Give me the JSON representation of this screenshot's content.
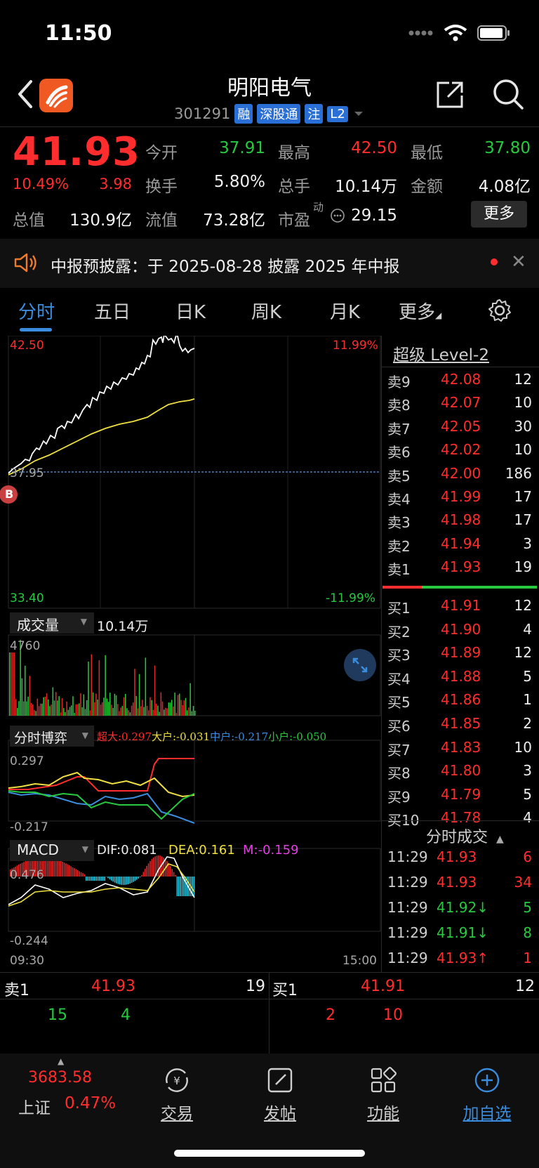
{
  "status": {
    "time": "11:50"
  },
  "header": {
    "stock_name": "明阳电气",
    "code": "301291",
    "tags": [
      "融",
      "深股通",
      "注",
      "L2"
    ]
  },
  "quote": {
    "price": "41.93",
    "change_pct": "10.49%",
    "change_val": "3.98",
    "fields": [
      {
        "label": "今开",
        "value": "37.91",
        "color": "#27c93f"
      },
      {
        "label": "最高",
        "value": "42.50",
        "color": "#ff2d2d"
      },
      {
        "label": "最低",
        "value": "37.80",
        "color": "#27c93f"
      },
      {
        "label": "换手",
        "value": "5.80%",
        "color": "#f2f2f2"
      },
      {
        "label": "总手",
        "value": "10.14万",
        "color": "#f2f2f2"
      },
      {
        "label": "金额",
        "value": "4.08亿",
        "color": "#f2f2f2"
      },
      {
        "label": "总值",
        "value": "130.9亿",
        "color": "#f2f2f2"
      },
      {
        "label": "流值",
        "value": "73.28亿",
        "color": "#f2f2f2"
      },
      {
        "label": "市盈",
        "value": "29.15",
        "color": "#f2f2f2"
      }
    ],
    "pe_sup": "动",
    "more_label": "更多"
  },
  "notice": {
    "text": "中报预披露：于 2025-08-28 披露 2025 年中报"
  },
  "tabs": [
    "分时",
    "五日",
    "日K",
    "周K",
    "月K",
    "更多"
  ],
  "chart": {
    "price_high": "42.50",
    "price_low": "33.40",
    "pct_high": "11.99%",
    "pct_low": "-11.99%",
    "prev_close_label": "37.95",
    "badge": "B",
    "volume_label": "成交量",
    "volume_total": "10.14万",
    "volume_max": "4760",
    "bo_label": "分时博弈",
    "bo_legend": [
      {
        "text": "超大:0.297",
        "color": "#ff2d2d"
      },
      {
        "text": "大户:-0.031",
        "color": "#f0e040"
      },
      {
        "text": "中户:-0.217",
        "color": "#3a8dde"
      },
      {
        "text": "小户:-0.050",
        "color": "#27c93f"
      }
    ],
    "bo_max": "0.297",
    "bo_min": "-0.217",
    "macd_label": "MACD",
    "macd_dif": "DIF:0.081",
    "macd_dea": "DEA:0.161",
    "macd_m": "M:-0.159",
    "macd_max": "0.476",
    "macd_min": "-0.244",
    "time_start": "09:30",
    "time_end": "15:00"
  },
  "orderbook": {
    "title": "超级 Level-2",
    "asks": [
      {
        "label": "卖9",
        "price": "42.08",
        "vol": "12"
      },
      {
        "label": "卖8",
        "price": "42.07",
        "vol": "10"
      },
      {
        "label": "卖7",
        "price": "42.05",
        "vol": "30"
      },
      {
        "label": "卖6",
        "price": "42.02",
        "vol": "10"
      },
      {
        "label": "卖5",
        "price": "42.00",
        "vol": "186"
      },
      {
        "label": "卖4",
        "price": "41.99",
        "vol": "17"
      },
      {
        "label": "卖3",
        "price": "41.98",
        "vol": "17"
      },
      {
        "label": "卖2",
        "price": "41.94",
        "vol": "3"
      },
      {
        "label": "卖1",
        "price": "41.93",
        "vol": "19"
      }
    ],
    "bids": [
      {
        "label": "买1",
        "price": "41.91",
        "vol": "12"
      },
      {
        "label": "买2",
        "price": "41.90",
        "vol": "4"
      },
      {
        "label": "买3",
        "price": "41.89",
        "vol": "12"
      },
      {
        "label": "买4",
        "price": "41.88",
        "vol": "5"
      },
      {
        "label": "买5",
        "price": "41.86",
        "vol": "1"
      },
      {
        "label": "买6",
        "price": "41.85",
        "vol": "2"
      },
      {
        "label": "买7",
        "price": "41.83",
        "vol": "10"
      },
      {
        "label": "买8",
        "price": "41.80",
        "vol": "3"
      },
      {
        "label": "买9",
        "price": "41.79",
        "vol": "5"
      },
      {
        "label": "买10",
        "price": "41.78",
        "vol": "4"
      }
    ]
  },
  "ticks": {
    "title": "分时成交",
    "rows": [
      {
        "time": "11:29",
        "price": "41.93",
        "vol": "6",
        "color": "#ff2d2d"
      },
      {
        "time": "11:29",
        "price": "41.93",
        "vol": "34",
        "color": "#ff2d2d"
      },
      {
        "time": "11:29",
        "price": "41.92↓",
        "vol": "5",
        "color": "#27c93f"
      },
      {
        "time": "11:29",
        "price": "41.91↓",
        "vol": "8",
        "color": "#27c93f"
      },
      {
        "time": "11:29",
        "price": "41.93↑",
        "vol": "1",
        "color": "#ff2d2d"
      }
    ]
  },
  "level1": {
    "ask_label": "卖1",
    "ask_price": "41.93",
    "ask_vol": "19",
    "ask_sub1": "15",
    "ask_sub2": "4",
    "bid_label": "买1",
    "bid_price": "41.91",
    "bid_vol": "12",
    "bid_sub1": "2",
    "bid_sub2": "10"
  },
  "nav": {
    "index_value": "3683.58",
    "index_name": "上证",
    "index_pct": "0.47%",
    "items": [
      "交易",
      "发帖",
      "功能",
      "加自选"
    ]
  }
}
